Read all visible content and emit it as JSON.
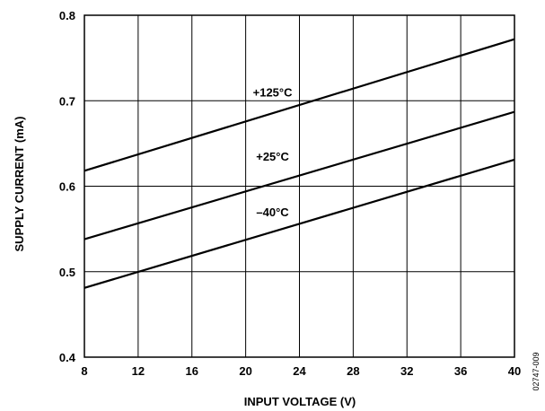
{
  "chart_data": {
    "type": "line",
    "xlabel": "INPUT VOLTAGE (V)",
    "ylabel": "SUPPLY CURRENT (mA)",
    "xlim": [
      8,
      40
    ],
    "ylim": [
      0.4,
      0.8
    ],
    "x_ticks": [
      "8",
      "12",
      "16",
      "20",
      "24",
      "28",
      "32",
      "36",
      "40"
    ],
    "y_ticks": [
      "0.4",
      "0.5",
      "0.6",
      "0.7",
      "0.8"
    ],
    "grid": true,
    "legend": "none",
    "series": [
      {
        "name": "+125°C",
        "x": [
          8,
          40
        ],
        "y": [
          0.618,
          0.772
        ]
      },
      {
        "name": "+25°C",
        "x": [
          8,
          40
        ],
        "y": [
          0.538,
          0.687
        ]
      },
      {
        "name": "–40°C",
        "x": [
          8,
          40
        ],
        "y": [
          0.481,
          0.631
        ]
      }
    ],
    "figure_id": "02747-009"
  }
}
